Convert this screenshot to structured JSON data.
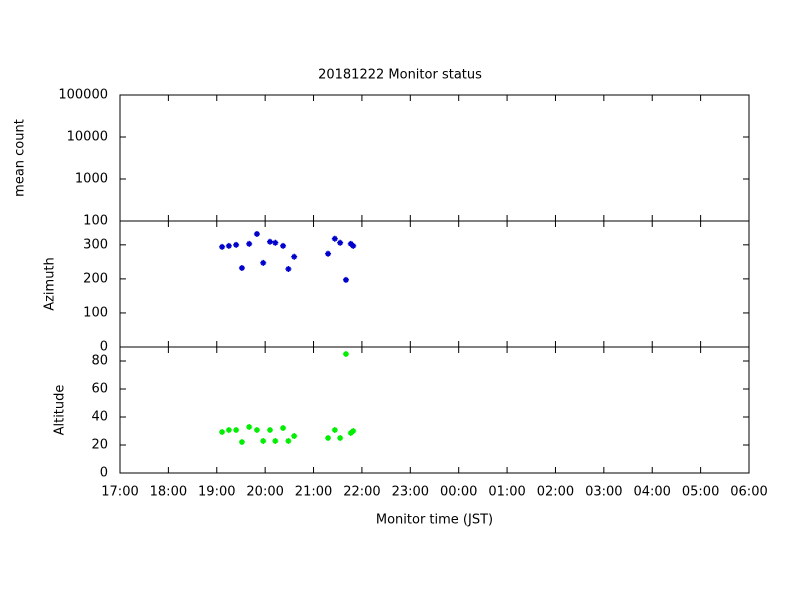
{
  "chart_data": [
    {
      "type": "scatter",
      "title": "20181222 Monitor status",
      "ylabel": "mean count",
      "log_y": true,
      "xlim": [
        17,
        30
      ],
      "ylim": [
        100,
        100000
      ],
      "yticks": [
        100,
        1000,
        10000,
        100000
      ]
    },
    {
      "type": "scatter",
      "ylabel": "Azimuth",
      "color": "#0000cc",
      "xlim": [
        17,
        30
      ],
      "ylim": [
        0,
        370
      ],
      "yticks": [
        0,
        100,
        200,
        300
      ],
      "x": [
        19.11,
        19.25,
        19.4,
        19.52,
        19.67,
        19.83,
        19.96,
        20.1,
        20.21,
        20.37,
        20.48,
        20.6,
        21.3,
        21.44,
        21.55,
        21.67,
        21.77,
        21.82
      ],
      "values": [
        294,
        297,
        300,
        232,
        303,
        332,
        247,
        309,
        306,
        297,
        229,
        265,
        274,
        318,
        306,
        197,
        303,
        297
      ]
    },
    {
      "type": "scatter",
      "ylabel": "Altitude",
      "xlabel": "Monitor time (JST)",
      "color": "#00ee00",
      "xlim": [
        17,
        30
      ],
      "xticks": [
        {
          "value": 17,
          "label": "17:00"
        },
        {
          "value": 18,
          "label": "18:00"
        },
        {
          "value": 19,
          "label": "19:00"
        },
        {
          "value": 20,
          "label": "20:00"
        },
        {
          "value": 21,
          "label": "21:00"
        },
        {
          "value": 22,
          "label": "22:00"
        },
        {
          "value": 23,
          "label": "23:00"
        },
        {
          "value": 24,
          "label": "00:00"
        },
        {
          "value": 25,
          "label": "01:00"
        },
        {
          "value": 26,
          "label": "02:00"
        },
        {
          "value": 27,
          "label": "03:00"
        },
        {
          "value": 28,
          "label": "04:00"
        },
        {
          "value": 29,
          "label": "05:00"
        },
        {
          "value": 30,
          "label": "06:00"
        }
      ],
      "ylim": [
        0,
        90
      ],
      "yticks": [
        0,
        20,
        40,
        60,
        80
      ],
      "x": [
        19.11,
        19.25,
        19.4,
        19.52,
        19.67,
        19.83,
        19.96,
        20.1,
        20.21,
        20.37,
        20.48,
        20.6,
        21.3,
        21.44,
        21.55,
        21.67,
        21.77,
        21.82
      ],
      "values": [
        29.3,
        30.7,
        30.7,
        22.1,
        32.9,
        30.7,
        22.9,
        30.7,
        22.9,
        32.1,
        22.9,
        26.4,
        25,
        30.7,
        25,
        85,
        28.6,
        30
      ]
    }
  ]
}
